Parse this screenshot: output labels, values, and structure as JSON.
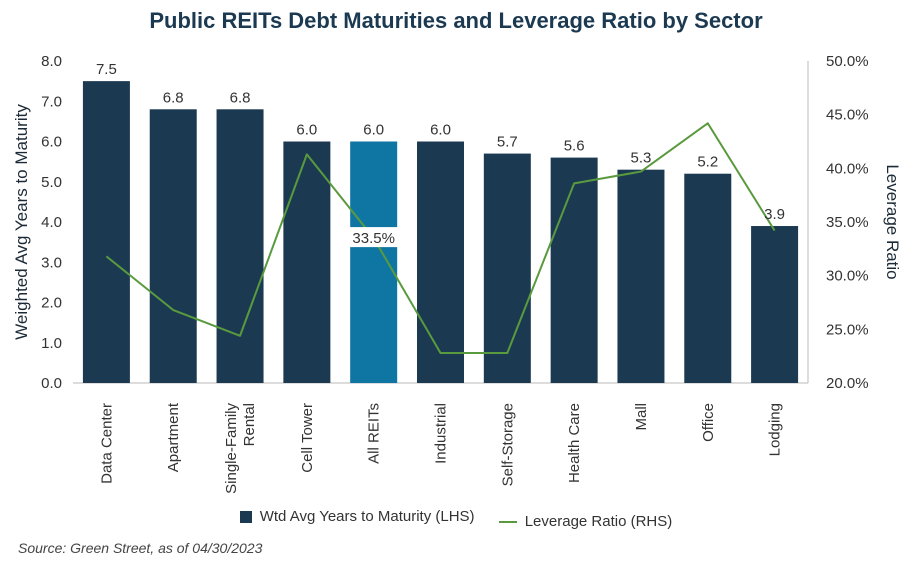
{
  "chart_data": {
    "type": "bar",
    "title": "Public REITs Debt Maturities and Leverage Ratio by Sector",
    "ylabel": "Weighted Avg Years to Maturity",
    "y2label": "Leverage Ratio",
    "ylim": [
      0,
      8
    ],
    "y2lim": [
      20,
      50
    ],
    "yticks": [
      "0.0",
      "1.0",
      "2.0",
      "3.0",
      "4.0",
      "5.0",
      "6.0",
      "7.0",
      "8.0"
    ],
    "y2ticks": [
      "20.0%",
      "25.0%",
      "30.0%",
      "35.0%",
      "40.0%",
      "45.0%",
      "50.0%"
    ],
    "categories": [
      "Data Center",
      "Apartment",
      "Single-Family Rental",
      "Cell Tower",
      "All REITs",
      "Industrial",
      "Self-Storage",
      "Health Care",
      "Mall",
      "Office",
      "Lodging"
    ],
    "category_labels": [
      [
        "Data Center"
      ],
      [
        "Apartment"
      ],
      [
        "Single-Family",
        "Rental"
      ],
      [
        "Cell Tower"
      ],
      [
        "All REITs"
      ],
      [
        "Industrial"
      ],
      [
        "Self-Storage"
      ],
      [
        "Health Care"
      ],
      [
        "Mall"
      ],
      [
        "Office"
      ],
      [
        "Lodging"
      ]
    ],
    "series": [
      {
        "name": "Wtd Avg Years to Maturity (LHS)",
        "type": "bar",
        "axis": "left",
        "values": [
          7.5,
          6.8,
          6.8,
          6.0,
          6.0,
          6.0,
          5.7,
          5.6,
          5.3,
          5.2,
          3.9
        ],
        "data_labels": [
          "7.5",
          "6.8",
          "6.8",
          "6.0",
          "6.0",
          "6.0",
          "5.7",
          "5.6",
          "5.3",
          "5.2",
          "3.9"
        ]
      },
      {
        "name": "Leverage Ratio (RHS)",
        "type": "line",
        "axis": "right",
        "values": [
          31.8,
          26.8,
          24.4,
          41.3,
          33.5,
          22.8,
          22.8,
          38.6,
          39.7,
          44.2,
          34.2
        ]
      }
    ],
    "annotations": [
      {
        "category": "All REITs",
        "text": "33.5%"
      }
    ],
    "colors": {
      "bar": "#1b3a52",
      "highlight_bar": "#0f76a3",
      "line": "#5a9a3e"
    },
    "highlight_category": "All REITs",
    "grid": false,
    "legend_position": "bottom"
  },
  "source": "Source: Green Street, as of 04/30/2023"
}
